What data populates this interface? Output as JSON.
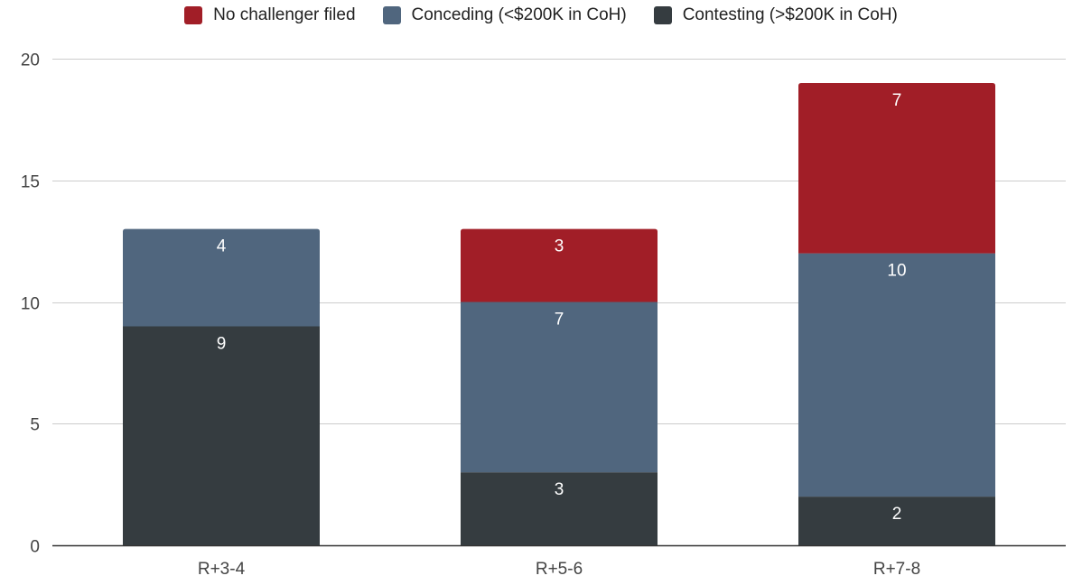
{
  "chart_data": {
    "type": "bar",
    "stacked": true,
    "categories": [
      "R+3-4",
      "R+5-6",
      "R+7-8"
    ],
    "series": [
      {
        "name": "Contesting (>$200K in CoH)",
        "values": [
          9,
          3,
          2
        ],
        "color": "#353c40"
      },
      {
        "name": "Conceding (<$200K in CoH)",
        "values": [
          4,
          7,
          10
        ],
        "color": "#50667e"
      },
      {
        "name": "No challenger filed",
        "values": [
          0,
          3,
          7
        ],
        "color": "#a11e27"
      }
    ],
    "legend_order": [
      "No challenger filed",
      "Conceding (<$200K in CoH)",
      "Contesting (>$200K in CoH)"
    ],
    "legend_position": "top",
    "title": "",
    "xlabel": "",
    "ylabel": "",
    "ylim": [
      0,
      20
    ],
    "yticks": [
      "0",
      "5",
      "10",
      "15",
      "20"
    ],
    "grid": true
  }
}
